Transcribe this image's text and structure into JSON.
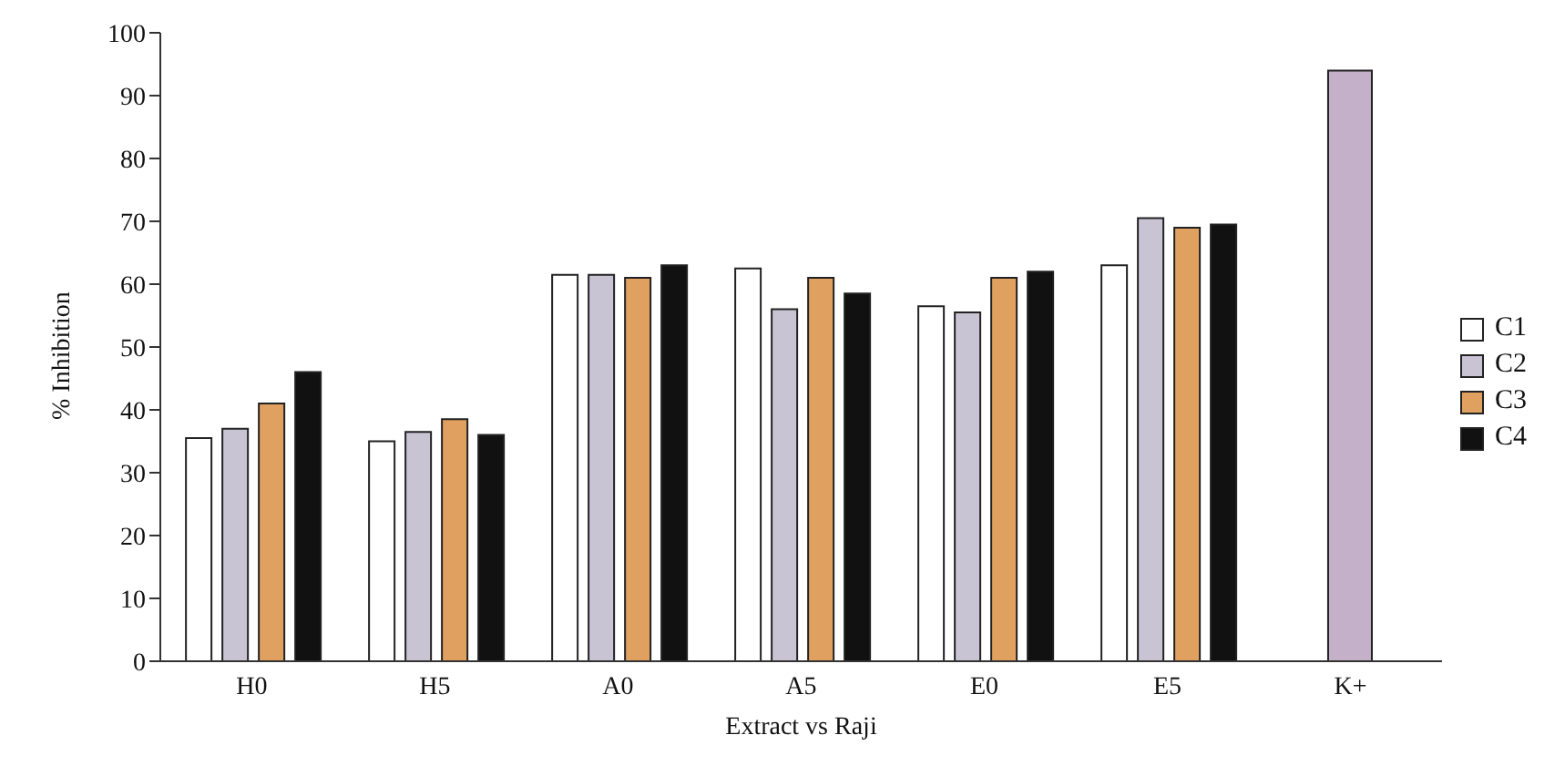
{
  "chart_data": {
    "type": "bar",
    "xlabel": "Extract vs  Raji",
    "ylabel": "% Inhibition",
    "categories": [
      "H0",
      "H5",
      "A0",
      "A5",
      "E0",
      "E5",
      "K+"
    ],
    "series": [
      {
        "name": "C1",
        "color": "#ffffff",
        "values": [
          35.5,
          35,
          61.5,
          62.5,
          56.5,
          63,
          null
        ]
      },
      {
        "name": "C2",
        "color": "#c8c4d4",
        "values": [
          37,
          36.5,
          61.5,
          56,
          55.5,
          70.5,
          null
        ]
      },
      {
        "name": "C3",
        "color": "#e0a060",
        "values": [
          41,
          38.5,
          61,
          61,
          61,
          69,
          null
        ]
      },
      {
        "name": "C4",
        "color": "#111111",
        "values": [
          46,
          36,
          63,
          58.5,
          62,
          69.5,
          null
        ]
      },
      {
        "color": "#c4b0c8",
        "values": [
          null,
          null,
          null,
          null,
          null,
          null,
          94
        ]
      }
    ],
    "ylim": [
      0,
      100
    ],
    "yticks": [
      0,
      10,
      20,
      30,
      40,
      50,
      60,
      70,
      80,
      90,
      100
    ],
    "legend": "right"
  }
}
